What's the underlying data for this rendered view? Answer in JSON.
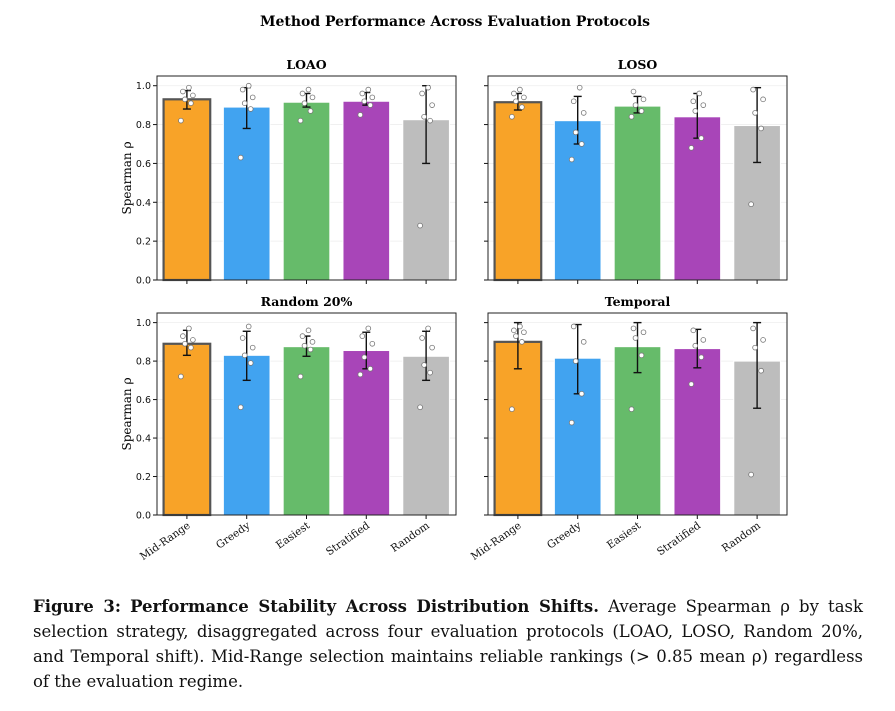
{
  "figure": {
    "title": "Method Performance Across Evaluation Protocols"
  },
  "caption": {
    "label": "Figure 3:",
    "bold": "Performance Stability Across Distribution Shifts.",
    "text": "Average Spearman ρ by task selection strategy, disaggregated across four evaluation protocols (LOAO, LOSO, Random 20%, and Temporal shift). Mid-Range selection maintains reliable rankings (> 0.85 mean ρ) regardless of the evaluation regime."
  },
  "colors": {
    "Mid-Range": "#f8a328",
    "Greedy": "#41a3f0",
    "Easiest": "#66bb6a",
    "Stratified": "#a845b8",
    "Random": "#bdbdbd",
    "highlight_edge": "#555555"
  },
  "chart_data": [
    {
      "type": "bar",
      "title": "LOAO",
      "ylabel": "Spearman ρ",
      "xlabel": "",
      "ylim": [
        0,
        1.05
      ],
      "yticks": [
        "0.0",
        "0.2",
        "0.4",
        "0.6",
        "0.8",
        "1.0"
      ],
      "categories": [
        "Mid-Range",
        "Greedy",
        "Easiest",
        "Stratified",
        "Random"
      ],
      "values": [
        0.93,
        0.89,
        0.915,
        0.92,
        0.825
      ],
      "error_low": [
        0.88,
        0.78,
        0.89,
        0.9,
        0.6
      ],
      "error_high": [
        0.975,
        0.99,
        0.96,
        0.965,
        1.0
      ],
      "points": [
        [
          0.82,
          0.91,
          0.93,
          0.95,
          0.97,
          0.99
        ],
        [
          0.63,
          0.88,
          0.91,
          0.94,
          0.98,
          1.0
        ],
        [
          0.82,
          0.87,
          0.91,
          0.94,
          0.96,
          0.98
        ],
        [
          0.85,
          0.9,
          0.92,
          0.94,
          0.96,
          0.98
        ],
        [
          0.28,
          0.82,
          0.84,
          0.9,
          0.96,
          0.99
        ]
      ],
      "highlight": "Mid-Range"
    },
    {
      "type": "bar",
      "title": "LOSO",
      "ylabel": "",
      "xlabel": "",
      "ylim": [
        0,
        1.05
      ],
      "yticks": [
        "0.0",
        "0.2",
        "0.4",
        "0.6",
        "0.8",
        "1.0"
      ],
      "categories": [
        "Mid-Range",
        "Greedy",
        "Easiest",
        "Stratified",
        "Random"
      ],
      "values": [
        0.915,
        0.82,
        0.895,
        0.84,
        0.795
      ],
      "error_low": [
        0.875,
        0.7,
        0.86,
        0.73,
        0.605
      ],
      "error_high": [
        0.96,
        0.945,
        0.945,
        0.96,
        0.99
      ],
      "points": [
        [
          0.84,
          0.89,
          0.92,
          0.94,
          0.96,
          0.98
        ],
        [
          0.62,
          0.7,
          0.76,
          0.86,
          0.92,
          0.99
        ],
        [
          0.84,
          0.87,
          0.9,
          0.93,
          0.97
        ],
        [
          0.68,
          0.73,
          0.87,
          0.9,
          0.92,
          0.96
        ],
        [
          0.39,
          0.78,
          0.86,
          0.93,
          0.98
        ]
      ],
      "highlight": "Mid-Range"
    },
    {
      "type": "bar",
      "title": "Random 20%",
      "ylabel": "Spearman ρ",
      "xlabel": "",
      "ylim": [
        0,
        1.05
      ],
      "yticks": [
        "0.0",
        "0.2",
        "0.4",
        "0.6",
        "0.8",
        "1.0"
      ],
      "categories": [
        "Mid-Range",
        "Greedy",
        "Easiest",
        "Stratified",
        "Random"
      ],
      "values": [
        0.89,
        0.83,
        0.875,
        0.855,
        0.825
      ],
      "error_low": [
        0.83,
        0.7,
        0.825,
        0.76,
        0.7
      ],
      "error_high": [
        0.96,
        0.955,
        0.93,
        0.95,
        0.955
      ],
      "points": [
        [
          0.72,
          0.87,
          0.89,
          0.91,
          0.93,
          0.97
        ],
        [
          0.56,
          0.79,
          0.83,
          0.87,
          0.92,
          0.98
        ],
        [
          0.72,
          0.86,
          0.88,
          0.9,
          0.93,
          0.96
        ],
        [
          0.73,
          0.76,
          0.82,
          0.89,
          0.93,
          0.97
        ],
        [
          0.56,
          0.74,
          0.78,
          0.87,
          0.92,
          0.97
        ]
      ],
      "highlight": "Mid-Range"
    },
    {
      "type": "bar",
      "title": "Temporal",
      "ylabel": "",
      "xlabel": "",
      "ylim": [
        0,
        1.05
      ],
      "yticks": [
        "0.0",
        "0.2",
        "0.4",
        "0.6",
        "0.8",
        "1.0"
      ],
      "categories": [
        "Mid-Range",
        "Greedy",
        "Easiest",
        "Stratified",
        "Random"
      ],
      "values": [
        0.9,
        0.815,
        0.875,
        0.865,
        0.8
      ],
      "error_low": [
        0.76,
        0.63,
        0.74,
        0.765,
        0.555
      ],
      "error_high": [
        1.0,
        0.99,
        1.0,
        0.965,
        1.0
      ],
      "points": [
        [
          0.55,
          0.9,
          0.93,
          0.95,
          0.96,
          0.98
        ],
        [
          0.48,
          0.63,
          0.8,
          0.9,
          0.98
        ],
        [
          0.55,
          0.83,
          0.92,
          0.95,
          0.97
        ],
        [
          0.68,
          0.82,
          0.88,
          0.91,
          0.96
        ],
        [
          0.21,
          0.75,
          0.87,
          0.91,
          0.97
        ]
      ],
      "highlight": "Mid-Range"
    }
  ]
}
